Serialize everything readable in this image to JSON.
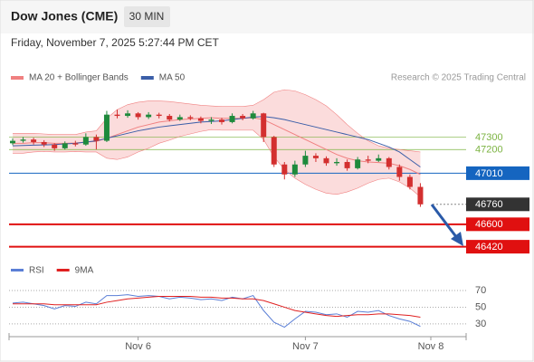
{
  "chart_data": [
    {
      "type": "candlestick",
      "title": "Dow Jones (CME)",
      "timeframe": "30 MIN",
      "subtitle": "Friday, November 7, 2025 5:27:44 PM CET",
      "credit": "Research © 2025 Trading Central",
      "ylim": [
        46330,
        47710
      ],
      "up_color": "#1e8a3c",
      "down_color": "#d32f2f",
      "open": [
        47250,
        47270,
        47280,
        47260,
        47240,
        47210,
        47250,
        47240,
        47300,
        47270,
        47480,
        47470,
        47490,
        47460,
        47480,
        47470,
        47440,
        47460,
        47450,
        47430,
        47440,
        47420,
        47470,
        47450,
        47490,
        47300,
        47080,
        47000,
        47080,
        47150,
        47130,
        47090,
        47100,
        47050,
        47120,
        47110,
        47130,
        47060,
        46980,
        46900,
        null
      ],
      "high": [
        47290,
        47300,
        47295,
        47275,
        47250,
        47265,
        47270,
        47330,
        47320,
        47510,
        47520,
        47515,
        47500,
        47500,
        47495,
        47485,
        47480,
        47475,
        47465,
        47460,
        47455,
        47490,
        47485,
        47510,
        47495,
        47310,
        47100,
        47110,
        47190,
        47170,
        47145,
        47130,
        47120,
        47140,
        47150,
        47160,
        47140,
        47080,
        47000,
        46930,
        null
      ],
      "low": [
        47235,
        47255,
        47240,
        47220,
        47190,
        47200,
        47225,
        47230,
        47200,
        47260,
        47450,
        47455,
        47440,
        47445,
        47450,
        47425,
        47430,
        47435,
        47410,
        47405,
        47400,
        47410,
        47435,
        47440,
        47260,
        47060,
        46960,
        46980,
        47060,
        47100,
        47070,
        47070,
        47030,
        47040,
        47090,
        47100,
        47040,
        46950,
        46880,
        46740,
        null
      ],
      "close": [
        47270,
        47280,
        47260,
        47240,
        47210,
        47250,
        47240,
        47300,
        47270,
        47480,
        47470,
        47490,
        47460,
        47480,
        47470,
        47440,
        47460,
        47450,
        47430,
        47440,
        47420,
        47470,
        47450,
        47490,
        47300,
        47080,
        47000,
        47080,
        47150,
        47130,
        47090,
        47100,
        47050,
        47120,
        47110,
        47130,
        47060,
        46980,
        46900,
        46760,
        null
      ],
      "series": [
        {
          "name": "MA 20 + Bollinger Bands",
          "color": "#f08080",
          "values": [
            47250,
            47250,
            47255,
            47255,
            47250,
            47250,
            47252,
            47260,
            47265,
            47290,
            47320,
            47350,
            47380,
            47400,
            47420,
            47430,
            47440,
            47445,
            47450,
            47455,
            47450,
            47450,
            47450,
            47455,
            47440,
            47400,
            47360,
            47320,
            47280,
            47240,
            47200,
            47160,
            47130,
            47110,
            47100,
            47095,
            47090,
            47070,
            47040,
            47000,
            null
          ],
          "upper": [
            47330,
            47330,
            47330,
            47325,
            47320,
            47320,
            47320,
            47340,
            47350,
            47450,
            47520,
            47560,
            47580,
            47590,
            47590,
            47585,
            47575,
            47565,
            47555,
            47550,
            47545,
            47545,
            47545,
            47555,
            47600,
            47660,
            47680,
            47670,
            47640,
            47600,
            47550,
            47480,
            47400,
            47330,
            47270,
            47230,
            47210,
            47200,
            47190,
            47180,
            null
          ],
          "lower": [
            47170,
            47170,
            47180,
            47185,
            47180,
            47180,
            47184,
            47180,
            47180,
            47130,
            47120,
            47140,
            47180,
            47210,
            47250,
            47275,
            47305,
            47325,
            47345,
            47360,
            47355,
            47355,
            47355,
            47355,
            47280,
            47140,
            47040,
            46970,
            46920,
            46880,
            46850,
            46840,
            46860,
            46890,
            46930,
            46960,
            46970,
            46940,
            46890,
            46820,
            null
          ]
        },
        {
          "name": "MA 50",
          "color": "#3b5ea8",
          "values": [
            47230,
            47232,
            47235,
            47237,
            47240,
            47245,
            47250,
            47260,
            47270,
            47290,
            47310,
            47330,
            47350,
            47365,
            47380,
            47390,
            47400,
            47410,
            47420,
            47425,
            47430,
            47440,
            47450,
            47460,
            47465,
            47455,
            47440,
            47420,
            47400,
            47380,
            47360,
            47340,
            47320,
            47300,
            47280,
            47250,
            47220,
            47180,
            47120,
            47060,
            null
          ]
        }
      ],
      "levels": [
        {
          "value": 47300,
          "color": "#7cb342",
          "line": "thin",
          "boxed": false
        },
        {
          "value": 47200,
          "color": "#7cb342",
          "line": "thin",
          "boxed": false
        },
        {
          "value": 47010,
          "color": "#1565c0",
          "line": "solid",
          "boxed": true
        },
        {
          "value": 46760,
          "color": "#333333",
          "line": "dotted",
          "boxed": true
        },
        {
          "value": 46600,
          "color": "#e01010",
          "line": "thick",
          "boxed": true
        },
        {
          "value": 46420,
          "color": "#e01010",
          "line": "thick",
          "boxed": true
        }
      ]
    },
    {
      "type": "line",
      "categories": [
        null,
        null,
        null,
        null,
        null,
        null,
        null,
        null,
        null,
        null,
        null,
        null,
        "Nov 6",
        null,
        null,
        null,
        null,
        null,
        null,
        null,
        null,
        null,
        null,
        null,
        null,
        null,
        null,
        null,
        "Nov 7",
        null,
        null,
        null,
        null,
        null,
        null,
        null,
        null,
        null,
        null,
        null,
        "Nov 8"
      ],
      "ylim": [
        19,
        82
      ],
      "yticks": [
        30,
        50,
        70
      ],
      "series": [
        {
          "name": "RSI",
          "color": "#5b7fd6",
          "values": [
            55,
            56,
            54,
            52,
            48,
            52,
            51,
            56,
            54,
            64,
            64,
            65,
            63,
            64,
            63,
            60,
            62,
            61,
            59,
            60,
            58,
            62,
            60,
            64,
            46,
            32,
            26,
            36,
            45,
            44,
            41,
            42,
            38,
            45,
            44,
            46,
            40,
            36,
            33,
            27,
            null
          ]
        },
        {
          "name": "9MA",
          "color": "#e02020",
          "values": [
            54,
            54,
            54,
            54,
            53,
            53,
            53,
            53,
            53,
            56,
            58,
            60,
            61,
            62,
            63,
            63,
            63,
            63,
            62,
            62,
            61,
            61,
            60,
            60,
            58,
            54,
            50,
            46,
            44,
            42,
            40,
            39,
            40,
            41,
            41,
            42,
            42,
            41,
            40,
            38,
            null
          ]
        }
      ]
    }
  ]
}
